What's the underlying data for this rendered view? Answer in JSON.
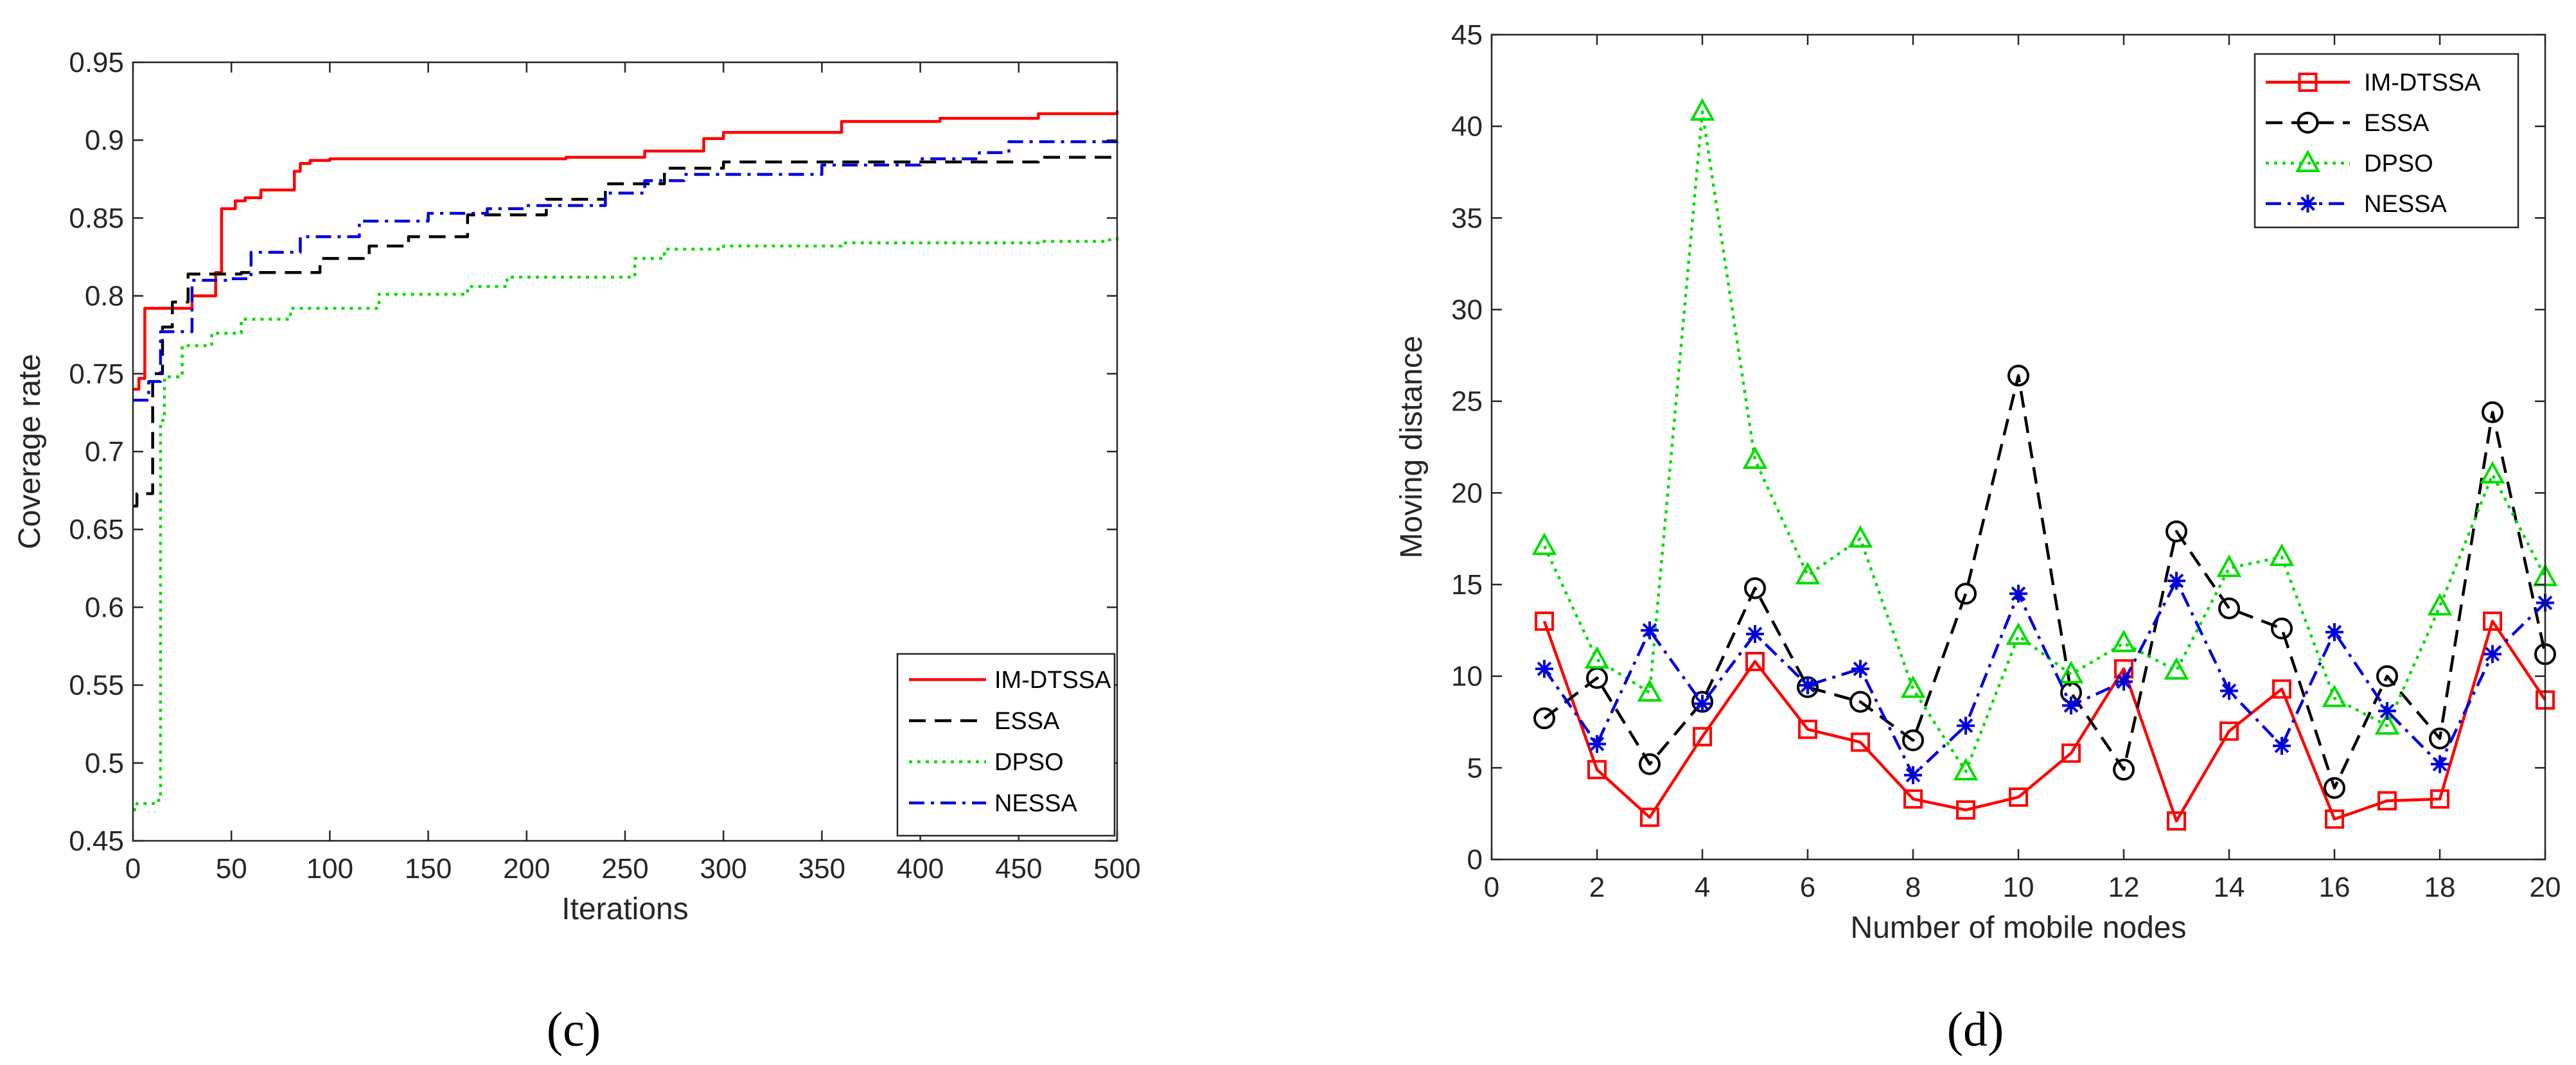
{
  "chart_data": [
    {
      "type": "line",
      "panel_label": "(c)",
      "title": "",
      "xlabel": "Iterations",
      "ylabel": "Coverage rate",
      "xlim": [
        0,
        500
      ],
      "ylim": [
        0.45,
        0.95
      ],
      "xticks": [
        0,
        50,
        100,
        150,
        200,
        250,
        300,
        350,
        400,
        450,
        500
      ],
      "yticks": [
        0.45,
        0.5,
        0.55,
        0.6,
        0.65,
        0.7,
        0.75,
        0.8,
        0.85,
        0.9,
        0.95
      ],
      "legend_position": "bottom-right",
      "step": true,
      "series": [
        {
          "name": "IM-DTSSA",
          "color": "#ff0000",
          "dash": "solid",
          "marker": "none",
          "x": [
            0,
            3,
            6,
            30,
            42,
            45,
            52,
            57,
            65,
            82,
            85,
            90,
            100,
            130,
            220,
            260,
            290,
            300,
            360,
            410,
            460,
            500
          ],
          "y": [
            0.74,
            0.747,
            0.792,
            0.8,
            0.815,
            0.856,
            0.861,
            0.863,
            0.868,
            0.88,
            0.885,
            0.887,
            0.888,
            0.888,
            0.889,
            0.893,
            0.901,
            0.905,
            0.912,
            0.914,
            0.917,
            0.919
          ]
        },
        {
          "name": "ESSA",
          "color": "#000000",
          "dash": "dashed",
          "marker": "none",
          "x": [
            0,
            2,
            10,
            15,
            20,
            28,
            40,
            55,
            60,
            95,
            120,
            140,
            170,
            210,
            240,
            270,
            300,
            460,
            500
          ],
          "y": [
            0.665,
            0.673,
            0.75,
            0.78,
            0.796,
            0.814,
            0.814,
            0.815,
            0.815,
            0.824,
            0.832,
            0.838,
            0.852,
            0.862,
            0.872,
            0.882,
            0.886,
            0.889,
            0.89
          ]
        },
        {
          "name": "DPSO",
          "color": "#00dd00",
          "dash": "dotted",
          "marker": "none",
          "x": [
            0,
            2,
            12,
            14,
            16,
            25,
            40,
            55,
            80,
            125,
            170,
            190,
            255,
            270,
            300,
            360,
            460,
            495,
            500
          ],
          "y": [
            0.47,
            0.474,
            0.476,
            0.72,
            0.748,
            0.768,
            0.776,
            0.785,
            0.792,
            0.801,
            0.806,
            0.812,
            0.824,
            0.83,
            0.832,
            0.834,
            0.835,
            0.836,
            0.84
          ]
        },
        {
          "name": "NESSA",
          "color": "#0000dd",
          "dash": "dashdot",
          "marker": "none",
          "x": [
            0,
            8,
            14,
            30,
            48,
            60,
            85,
            115,
            150,
            180,
            200,
            240,
            260,
            280,
            350,
            400,
            430,
            445,
            500
          ],
          "y": [
            0.733,
            0.745,
            0.777,
            0.81,
            0.811,
            0.828,
            0.838,
            0.848,
            0.853,
            0.856,
            0.858,
            0.866,
            0.874,
            0.878,
            0.884,
            0.888,
            0.892,
            0.899,
            0.902
          ]
        }
      ]
    },
    {
      "type": "line",
      "panel_label": "(d)",
      "title": "",
      "xlabel": "Number of mobile nodes",
      "ylabel": "Moving distance",
      "xlim": [
        0,
        20
      ],
      "ylim": [
        0,
        45
      ],
      "xticks": [
        0,
        2,
        4,
        6,
        8,
        10,
        12,
        14,
        16,
        18,
        20
      ],
      "yticks": [
        0,
        5,
        10,
        15,
        20,
        25,
        30,
        35,
        40,
        45
      ],
      "legend_position": "top-right",
      "step": false,
      "x": [
        1,
        2,
        3,
        4,
        5,
        6,
        7,
        8,
        9,
        10,
        11,
        12,
        13,
        14,
        15,
        16,
        17,
        18,
        19,
        20
      ],
      "series": [
        {
          "name": "IM-DTSSA",
          "color": "#ff0000",
          "dash": "solid",
          "marker": "square",
          "values": [
            13.0,
            4.9,
            2.3,
            6.7,
            10.8,
            7.1,
            6.4,
            3.3,
            2.7,
            3.4,
            5.8,
            10.4,
            2.1,
            7.0,
            9.3,
            2.2,
            3.2,
            3.3,
            13.0,
            8.7
          ]
        },
        {
          "name": "ESSA",
          "color": "#000000",
          "dash": "dashed",
          "marker": "circle",
          "values": [
            7.7,
            9.9,
            5.2,
            8.6,
            14.8,
            9.4,
            8.6,
            6.5,
            14.5,
            26.4,
            9.1,
            4.9,
            17.9,
            13.7,
            12.6,
            3.9,
            10.0,
            6.6,
            24.4,
            11.2
          ]
        },
        {
          "name": "DPSO",
          "color": "#00dd00",
          "dash": "dotted",
          "marker": "triangle",
          "values": [
            17.1,
            10.9,
            9.1,
            40.8,
            21.8,
            15.5,
            17.5,
            9.3,
            4.8,
            12.2,
            10.1,
            11.8,
            10.3,
            15.9,
            16.5,
            8.8,
            7.3,
            13.8,
            21.0,
            15.4
          ]
        },
        {
          "name": "NESSA",
          "color": "#0000dd",
          "dash": "dashdot",
          "marker": "asterisk",
          "values": [
            10.4,
            6.3,
            12.5,
            8.5,
            12.3,
            9.5,
            10.4,
            4.6,
            7.3,
            14.5,
            8.4,
            9.7,
            15.2,
            9.2,
            6.2,
            12.4,
            8.1,
            5.2,
            11.2,
            14.0
          ]
        }
      ]
    }
  ]
}
